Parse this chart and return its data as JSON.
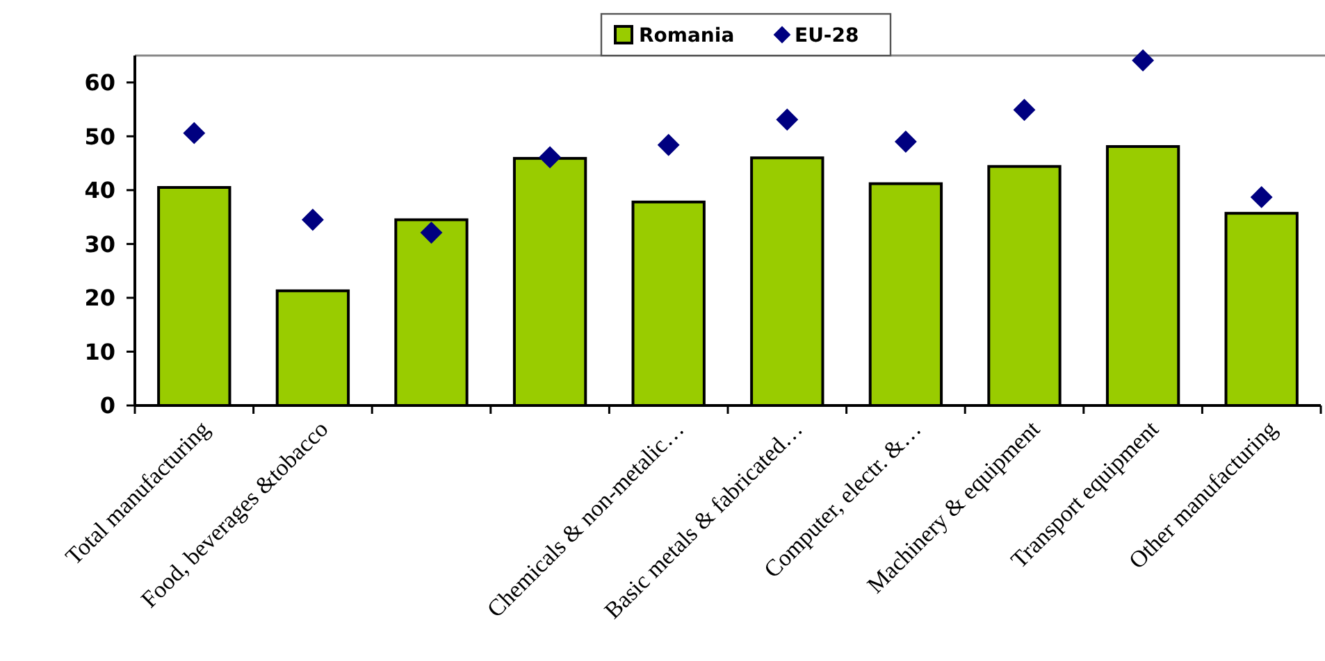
{
  "chart_data": {
    "type": "bar",
    "categories": [
      "Total  manufacturing",
      "Food, beverages &tobacco",
      null,
      null,
      "Chemicals & non-metalic…",
      "Basic metals & fabricated…",
      "Computer, electr. &…",
      "Machinery & equipment",
      "Transport equipment",
      "Other manufacturing"
    ],
    "series": [
      {
        "name": "Romania",
        "color": "#99cc00",
        "values": [
          40.5,
          21.3,
          34.5,
          45.9,
          37.8,
          46.0,
          41.2,
          44.4,
          48.1,
          35.7
        ]
      },
      {
        "name": "EU-28",
        "type": "scatter",
        "color": "#000080",
        "values": [
          50.6,
          34.5,
          32.1,
          46.1,
          48.4,
          53.1,
          49.0,
          54.9,
          64.1,
          38.7
        ]
      }
    ],
    "ylim": [
      0,
      65
    ],
    "yticks": [
      0,
      10,
      20,
      30,
      40,
      50,
      60
    ],
    "legend": "top",
    "marker": "diamond",
    "grid": false
  }
}
